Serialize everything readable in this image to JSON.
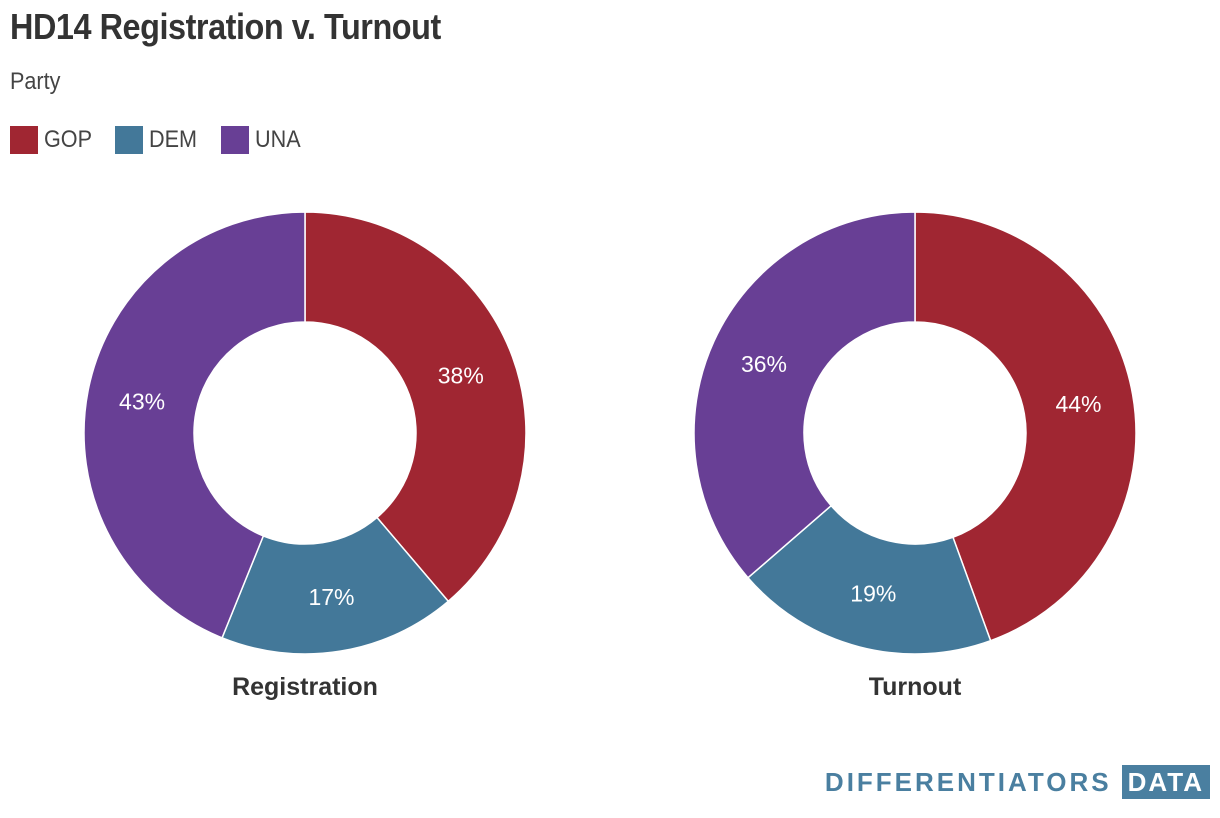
{
  "title": "HD14 Registration v. Turnout",
  "subtitle": "Party",
  "legend": [
    {
      "label": "GOP",
      "color": "#a02632"
    },
    {
      "label": "DEM",
      "color": "#437899"
    },
    {
      "label": "UNA",
      "color": "#683f95"
    }
  ],
  "chart_data": [
    {
      "type": "pie",
      "title": "Registration",
      "categories": [
        "GOP",
        "DEM",
        "UNA"
      ],
      "values": [
        38,
        17,
        43
      ],
      "labels": [
        "38%",
        "17%",
        "43%"
      ],
      "colors": [
        "#a02632",
        "#437899",
        "#683f95"
      ]
    },
    {
      "type": "pie",
      "title": "Turnout",
      "categories": [
        "GOP",
        "DEM",
        "UNA"
      ],
      "values": [
        44,
        19,
        36
      ],
      "labels": [
        "44%",
        "19%",
        "36%"
      ],
      "colors": [
        "#a02632",
        "#437899",
        "#683f95"
      ]
    }
  ],
  "brand": {
    "main": "DIFFERENTIATORS",
    "box": "DATA"
  }
}
